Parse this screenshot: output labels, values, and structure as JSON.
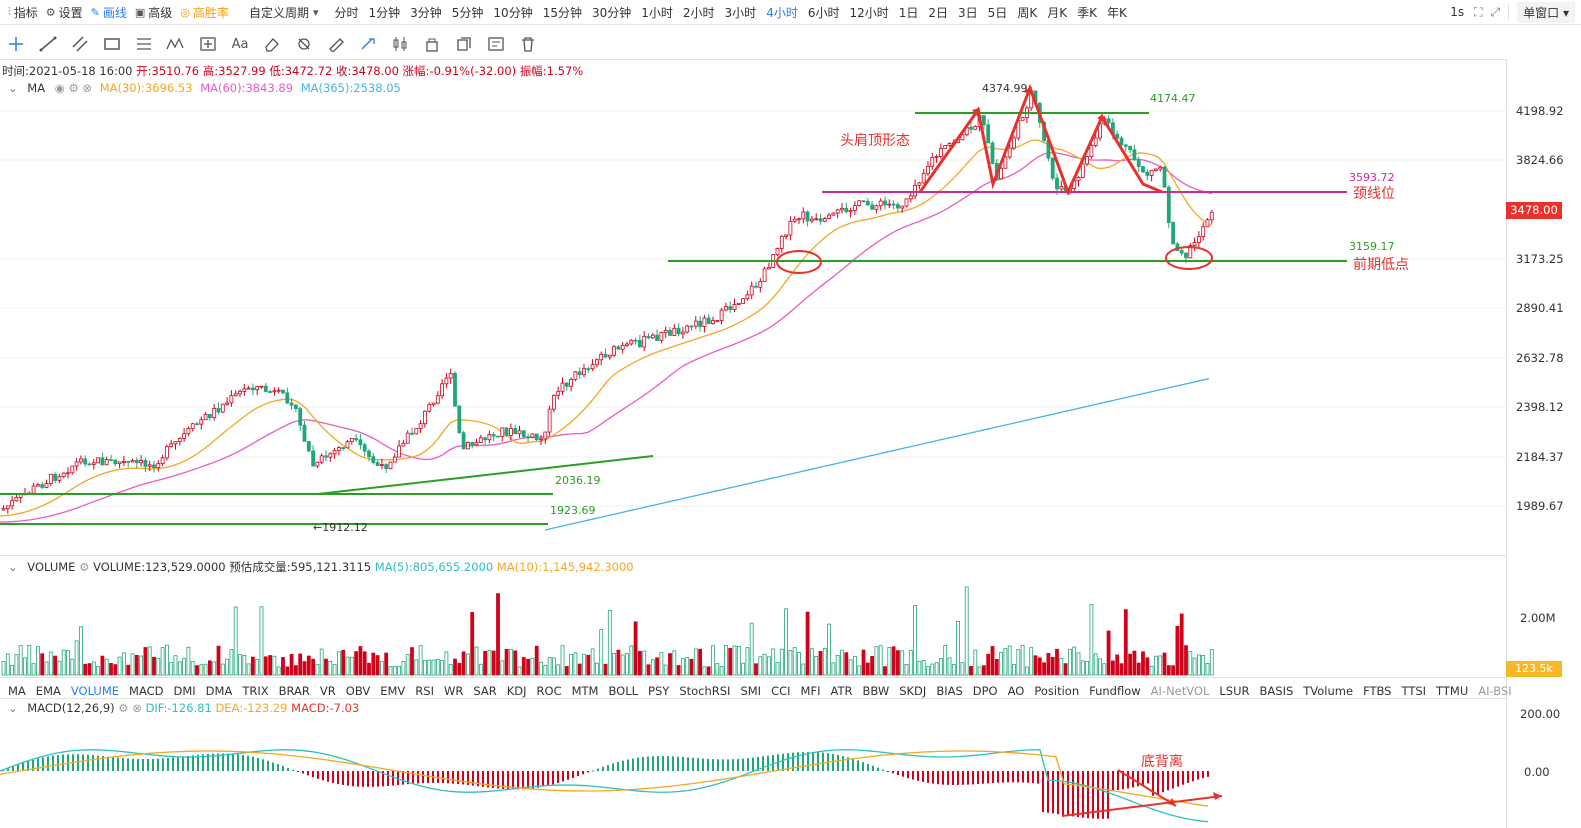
{
  "toolbar": {
    "indicator_label": "指标",
    "settings_label": "设置",
    "draw_label": "画线",
    "advanced_label": "高级",
    "winrate_label": "高胜率",
    "custom_period_label": "自定义周期",
    "periods": [
      "分时",
      "1分钟",
      "3分钟",
      "5分钟",
      "10分钟",
      "15分钟",
      "30分钟",
      "1小时",
      "2小时",
      "3小时",
      "4小时",
      "6小时",
      "12小时",
      "1日",
      "2日",
      "3日",
      "5日",
      "周K",
      "月K",
      "季K",
      "年K"
    ],
    "active_period": "4小时",
    "interval_label": "1s",
    "window_label": "单窗口"
  },
  "info": {
    "time": "时间:2021-05-18 16:00",
    "open": "开:3510.76",
    "high": "高:3527.99",
    "low": "低:3472.72",
    "close": "收:3478.00",
    "change": "涨幅:-0.91%(-32.00)",
    "amplitude": "振幅:1.57%"
  },
  "ma": {
    "name": "MA",
    "ma30": "MA(30):3696.53",
    "ma60": "MA(60):3843.89",
    "ma365": "MA(365):2538.05"
  },
  "price_axis": [
    "4198.92",
    "3824.66",
    "3173.25",
    "2890.41",
    "2632.78",
    "2398.12",
    "2184.37",
    "1989.67"
  ],
  "current_price": "3478.00",
  "annotations": {
    "peak": "4374.99",
    "right_shoulder": "4174.47",
    "pattern": "头肩顶形态",
    "neckline_value": "3593.72",
    "neckline": "颈线位",
    "prior_low_value": "3159.17",
    "prior_low": "前期低点",
    "support1": "2036.19",
    "support2": "1923.69",
    "low_mark": "←1912.12",
    "divergence": "底背离"
  },
  "volume": {
    "name": "VOLUME",
    "value": "VOLUME:123,529.0000",
    "estimated": "预估成交量:595,121.3115",
    "ma5": "MA(5):805,655.2000",
    "ma10": "MA(10):1,145,942.3000",
    "axis_label": "2.00M",
    "current": "123.5k"
  },
  "indicators": [
    "MA",
    "EMA",
    "VOLUME",
    "MACD",
    "DMI",
    "DMA",
    "TRIX",
    "BRAR",
    "VR",
    "OBV",
    "EMV",
    "RSI",
    "WR",
    "SAR",
    "KDJ",
    "ROC",
    "MTM",
    "BOLL",
    "PSY",
    "StochRSI",
    "SMI",
    "CCI",
    "MFI",
    "ATR",
    "BBW",
    "SKDJ",
    "BIAS",
    "DPO",
    "AO",
    "Position",
    "Fundflow",
    "AI-NetVOL",
    "LSUR",
    "BASIS",
    "TVolume",
    "FTBS",
    "TTSI",
    "TTMU",
    "AI-BSI"
  ],
  "active_indicator": "VOLUME",
  "macd": {
    "name": "MACD(12,26,9)",
    "dif": "DIF:-126.81",
    "dea": "DEA:-123.29",
    "macd": "MACD:-7.03",
    "axis_top": "200.00",
    "axis_zero": "0.00"
  },
  "colors": {
    "up": "#d0021b",
    "down": "#21a67a",
    "ma30": "#f5a623",
    "ma60": "#e85cc4",
    "ma365": "#43b4e5",
    "support_line": "#2a9d24",
    "neckline": "#c62d9b",
    "annotation": "#e8312d",
    "active": "#2d7cf0"
  }
}
